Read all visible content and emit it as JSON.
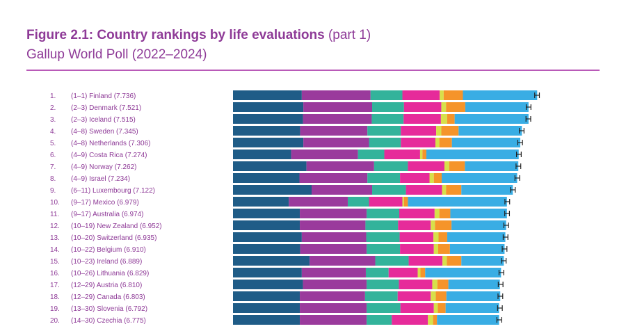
{
  "figure": {
    "title_bold": "Figure 2.1: Country rankings by life evaluations",
    "title_part": "(part 1)",
    "subtitle": "Gallup World Poll (2022–2024)"
  },
  "colors": {
    "title": "#8e3a97",
    "rule": "#b95ab8",
    "segments": [
      "#1f5c87",
      "#9a3a9c",
      "#33b39b",
      "#e62b9a",
      "#d7e04a",
      "#f5942a",
      "#39ade4"
    ],
    "errorbar": "#222222"
  },
  "chart_data": {
    "type": "bar",
    "stacked": true,
    "orientation": "horizontal",
    "categories": [
      "1.|(1–1) Finland (7.736)",
      "2.|(2–3) Denmark (7.521)",
      "3.|(2–3) Iceland (7.515)",
      "4.|(4–8) Sweden (7.345)",
      "5.|(4–8) Netherlands (7.306)",
      "6.|(4–9) Costa Rica (7.274)",
      "7.|(4–9) Norway (7.262)",
      "8.|(4–9) Israel (7.234)",
      "9.|(6–11) Luxembourg (7.122)",
      "10.|(9–17) Mexico (6.979)",
      "11.|(9–17) Australia (6.974)",
      "12.|(10–19) New Zealand (6.952)",
      "13.|(10–20) Switzerland (6.935)",
      "14.|(10–22) Belgium (6.910)",
      "15.|(10–23) Ireland (6.889)",
      "16.|(10–26) Lithuania (6.829)",
      "17.|(12–29) Austria (6.810)",
      "18.|(12–29) Canada (6.803)",
      "19.|(13–30) Slovenia (6.792)",
      "20.|(14–30) Czechia (6.775)"
    ],
    "totals": [
      7.736,
      7.521,
      7.515,
      7.345,
      7.306,
      7.274,
      7.262,
      7.234,
      7.122,
      6.979,
      6.974,
      6.952,
      6.935,
      6.91,
      6.889,
      6.829,
      6.81,
      6.803,
      6.792,
      6.775
    ],
    "series": [
      {
        "values": [
          1.75,
          1.79,
          1.78,
          1.71,
          1.79,
          1.48,
          1.87,
          1.69,
          2.0,
          1.42,
          1.7,
          1.7,
          1.75,
          1.71,
          1.95,
          1.75,
          1.78,
          1.7,
          1.7,
          1.7
        ]
      },
      {
        "values": [
          1.75,
          1.75,
          1.75,
          1.71,
          1.67,
          1.7,
          1.72,
          1.73,
          1.54,
          1.5,
          1.7,
          1.67,
          1.64,
          1.69,
          1.67,
          1.63,
          1.62,
          1.66,
          1.7,
          1.7
        ]
      },
      {
        "values": [
          0.81,
          0.81,
          0.81,
          0.85,
          0.81,
          0.67,
          0.86,
          0.83,
          0.86,
          0.54,
          0.83,
          0.83,
          0.85,
          0.85,
          0.85,
          0.58,
          0.82,
          0.83,
          0.86,
          0.64
        ]
      },
      {
        "values": [
          0.95,
          0.95,
          0.95,
          0.9,
          0.88,
          0.91,
          0.93,
          0.75,
          0.92,
          0.85,
          0.9,
          0.83,
          0.86,
          0.86,
          0.86,
          0.74,
          0.85,
          0.84,
          0.85,
          0.92
        ]
      },
      {
        "values": [
          0.1,
          0.12,
          0.16,
          0.13,
          0.1,
          0.06,
          0.12,
          0.11,
          0.1,
          0.04,
          0.12,
          0.11,
          0.13,
          0.11,
          0.11,
          0.07,
          0.13,
          0.13,
          0.1,
          0.13
        ]
      },
      {
        "values": [
          0.49,
          0.49,
          0.19,
          0.44,
          0.32,
          0.1,
          0.4,
          0.2,
          0.39,
          0.1,
          0.28,
          0.42,
          0.22,
          0.3,
          0.37,
          0.12,
          0.28,
          0.27,
          0.2,
          0.1
        ]
      },
      {
        "values": [
          1.89,
          1.61,
          1.88,
          1.61,
          1.74,
          2.35,
          1.36,
          1.92,
          1.31,
          2.52,
          1.44,
          1.39,
          1.48,
          1.39,
          1.08,
          1.93,
          1.31,
          1.37,
          1.36,
          1.58
        ]
      }
    ],
    "error": 0.06,
    "xlim": [
      0,
      8
    ]
  }
}
